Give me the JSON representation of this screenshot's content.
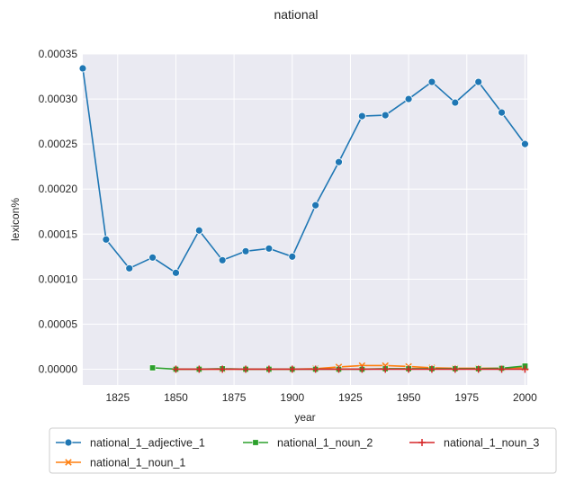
{
  "chart_data": {
    "type": "line",
    "title": "national",
    "xlabel": "year",
    "ylabel": "lexicon%",
    "xlim": [
      1810,
      2001
    ],
    "ylim": [
      -1.75e-05,
      0.00035
    ],
    "x_ticks": [
      1825,
      1850,
      1875,
      1900,
      1925,
      1950,
      1975,
      2000
    ],
    "y_ticks": [
      0.0,
      5e-05,
      0.0001,
      0.00015,
      0.0002,
      0.00025,
      0.0003,
      0.00035
    ],
    "y_tick_labels": [
      "0.00000",
      "0.00005",
      "0.00010",
      "0.00015",
      "0.00020",
      "0.00025",
      "0.00030",
      "0.00035"
    ],
    "grid": true,
    "legend_position": "bottom",
    "series": [
      {
        "name": "national_1_adjective_1",
        "color": "#1f77b4",
        "marker": "circle",
        "x": [
          1810,
          1820,
          1830,
          1840,
          1850,
          1860,
          1870,
          1880,
          1890,
          1900,
          1910,
          1920,
          1930,
          1940,
          1950,
          1960,
          1970,
          1980,
          1990,
          2000
        ],
        "y": [
          0.000334,
          0.000144,
          0.000112,
          0.000124,
          0.000107,
          0.000154,
          0.000121,
          0.000131,
          0.000134,
          0.000125,
          0.000182,
          0.00023,
          0.000281,
          0.000282,
          0.0003,
          0.000319,
          0.000296,
          0.000319,
          0.000285,
          0.00025
        ]
      },
      {
        "name": "national_1_noun_1",
        "color": "#ff7f0e",
        "marker": "x",
        "x": [
          1850,
          1860,
          1870,
          1880,
          1890,
          1900,
          1910,
          1920,
          1930,
          1940,
          1950,
          1960,
          1970,
          1980,
          1990,
          2000
        ],
        "y": [
          0.0,
          0.0,
          0.0,
          0.0,
          0.0,
          0.0,
          5e-07,
          2.5e-06,
          4e-06,
          4e-06,
          3e-06,
          1.5e-06,
          1e-06,
          1e-06,
          1e-06,
          2e-06
        ]
      },
      {
        "name": "national_1_noun_2",
        "color": "#2ca02c",
        "marker": "square",
        "x": [
          1840,
          1850,
          1860,
          1870,
          1880,
          1890,
          1900,
          1910,
          1920,
          1930,
          1940,
          1950,
          1960,
          1970,
          1980,
          1990,
          2000
        ],
        "y": [
          1.5e-06,
          0.0,
          0.0,
          5e-07,
          0.0,
          0.0,
          0.0,
          0.0,
          0.0,
          0.0,
          5e-07,
          5e-07,
          5e-07,
          5e-07,
          5e-07,
          1e-06,
          3.5e-06
        ]
      },
      {
        "name": "national_1_noun_3",
        "color": "#d62728",
        "marker": "plus",
        "x": [
          1850,
          1860,
          1870,
          1880,
          1890,
          1900,
          1910,
          1920,
          1930,
          1940,
          1950,
          1960,
          1970,
          1980,
          1990,
          2000
        ],
        "y": [
          0.0,
          0.0,
          0.0,
          0.0,
          0.0,
          0.0,
          0.0,
          0.0,
          0.0,
          0.0,
          0.0,
          0.0,
          0.0,
          0.0,
          0.0,
          0.0
        ]
      }
    ],
    "colors": {
      "plot_background": "#eaeaf2",
      "grid": "#ffffff",
      "legend_border": "#cccccc"
    }
  }
}
